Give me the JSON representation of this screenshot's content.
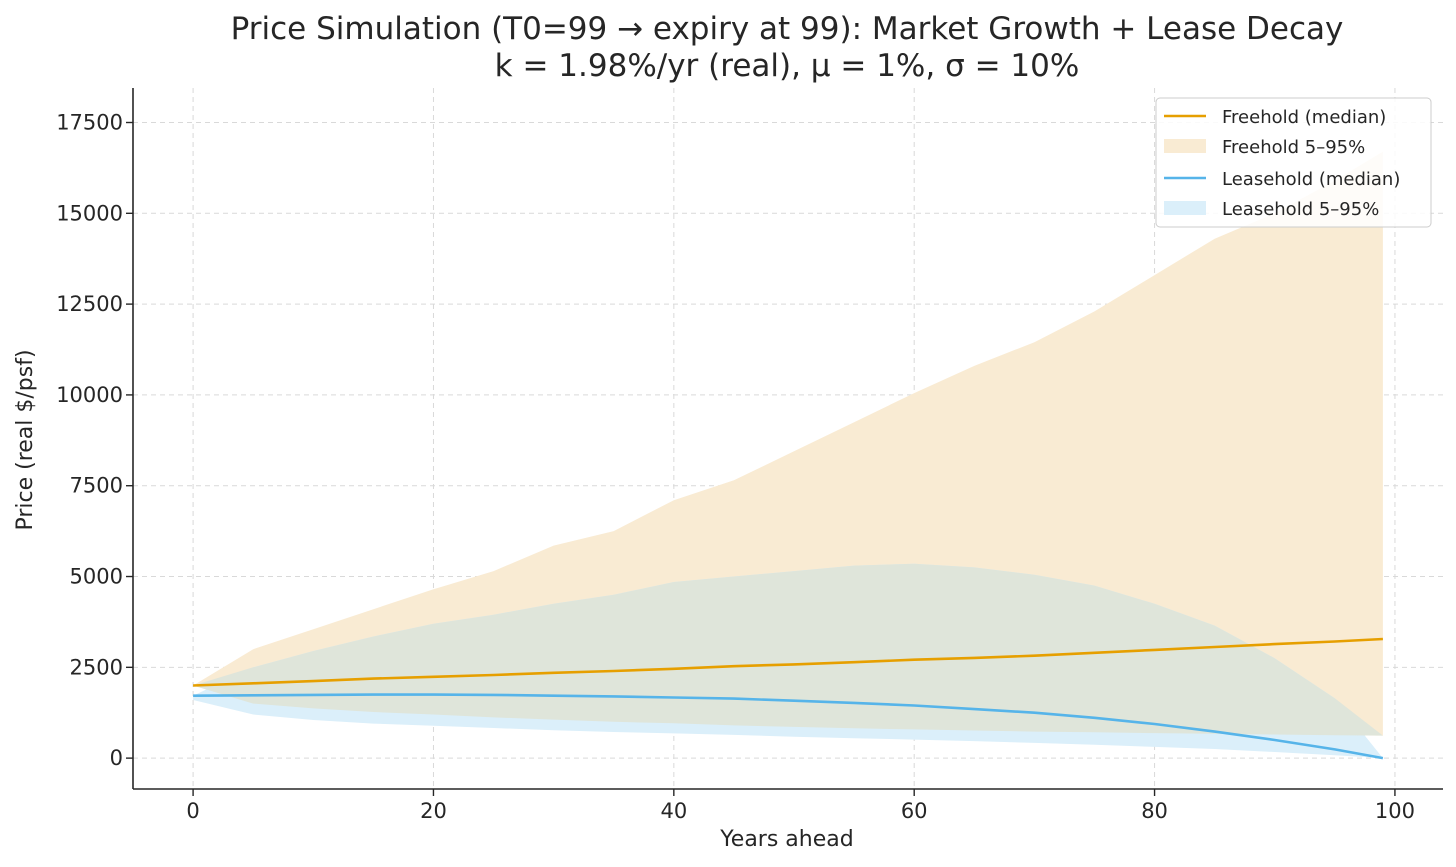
{
  "chart_data": {
    "type": "line",
    "title_line1": "Price Simulation (T0=99 → expiry at 99): Market Growth + Lease Decay",
    "title_line2": "k = 1.98%/yr (real), μ = 1%, σ = 10%",
    "xlabel": "Years ahead",
    "ylabel": "Price (real $/psf)",
    "xlim": [
      -5,
      104
    ],
    "ylim": [
      -850,
      18450
    ],
    "xticks": [
      0,
      20,
      40,
      60,
      80,
      100
    ],
    "yticks": [
      0,
      2500,
      5000,
      7500,
      10000,
      12500,
      15000,
      17500
    ],
    "grid": true,
    "legend_position": "top-right",
    "legend": [
      "Freehold (median)",
      "Freehold 5–95%",
      "Leasehold (median)",
      "Leasehold 5–95%"
    ],
    "colors": {
      "freehold_line": "#e69f00",
      "freehold_band": "#f9ebd3",
      "leasehold_line": "#56b4e9",
      "leasehold_band": "#dbeffa",
      "overlap_band": "#dfe5da"
    },
    "series": [
      {
        "name": "Freehold (median)",
        "x": [
          0,
          5,
          10,
          15,
          20,
          25,
          30,
          35,
          40,
          45,
          50,
          55,
          60,
          65,
          70,
          75,
          80,
          85,
          90,
          95,
          99
        ],
        "values": [
          2000,
          2060,
          2120,
          2190,
          2240,
          2290,
          2350,
          2400,
          2460,
          2530,
          2580,
          2640,
          2710,
          2760,
          2820,
          2900,
          2980,
          3060,
          3140,
          3210,
          3280
        ]
      },
      {
        "name": "Freehold 5–95%",
        "x": [
          0,
          5,
          10,
          15,
          20,
          25,
          30,
          35,
          40,
          45,
          50,
          55,
          60,
          65,
          70,
          75,
          80,
          85,
          90,
          95,
          99
        ],
        "lower": [
          2000,
          1500,
          1370,
          1270,
          1200,
          1120,
          1060,
          1000,
          960,
          900,
          860,
          820,
          790,
          760,
          730,
          710,
          690,
          670,
          650,
          630,
          620
        ],
        "upper": [
          2000,
          3000,
          3550,
          4100,
          4650,
          5150,
          5850,
          6250,
          7100,
          7650,
          8450,
          9250,
          10050,
          10800,
          11450,
          12300,
          13300,
          14300,
          15000,
          15900,
          16700
        ]
      },
      {
        "name": "Leasehold (median)",
        "x": [
          0,
          5,
          10,
          15,
          20,
          25,
          30,
          35,
          40,
          45,
          50,
          55,
          60,
          65,
          70,
          75,
          80,
          85,
          90,
          95,
          99
        ],
        "values": [
          1720,
          1730,
          1740,
          1750,
          1750,
          1740,
          1720,
          1700,
          1670,
          1640,
          1580,
          1520,
          1450,
          1350,
          1250,
          1110,
          940,
          730,
          500,
          240,
          0
        ]
      },
      {
        "name": "Leasehold 5–95%",
        "x": [
          0,
          5,
          10,
          15,
          20,
          25,
          30,
          35,
          40,
          45,
          50,
          55,
          60,
          65,
          70,
          75,
          80,
          85,
          90,
          95,
          99
        ],
        "lower": [
          1600,
          1200,
          1050,
          950,
          890,
          830,
          770,
          720,
          680,
          640,
          590,
          550,
          510,
          470,
          420,
          370,
          310,
          250,
          170,
          80,
          0
        ],
        "upper": [
          1720,
          2500,
          2950,
          3350,
          3700,
          3950,
          4250,
          4500,
          4850,
          5000,
          5150,
          5300,
          5350,
          5250,
          5050,
          4750,
          4250,
          3650,
          2750,
          1650,
          0
        ]
      }
    ]
  }
}
